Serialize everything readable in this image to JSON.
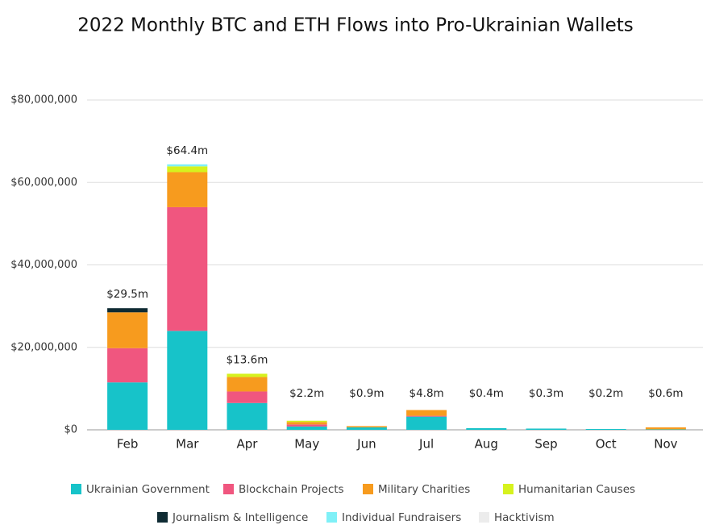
{
  "chart_data": {
    "type": "stacked-bar",
    "title": "2022 Monthly BTC and ETH Flows into Pro-Ukrainian Wallets",
    "categories": [
      "Feb",
      "Mar",
      "Apr",
      "May",
      "Jun",
      "Jul",
      "Aug",
      "Sep",
      "Oct",
      "Nov"
    ],
    "series": [
      {
        "name": "Ukrainian Government",
        "color": "#17c3c9",
        "values": [
          11500000,
          24000000,
          6500000,
          800000,
          600000,
          3200000,
          400000,
          300000,
          200000,
          100000
        ]
      },
      {
        "name": "Blockchain Projects",
        "color": "#f0567f",
        "values": [
          8300000,
          30000000,
          2800000,
          500000,
          0,
          200000,
          0,
          0,
          0,
          0
        ]
      },
      {
        "name": "Military Charities",
        "color": "#f79b1e",
        "values": [
          8700000,
          8500000,
          3500000,
          600000,
          300000,
          1400000,
          0,
          0,
          0,
          500000
        ]
      },
      {
        "name": "Humanitarian Causes",
        "color": "#d6f21e",
        "values": [
          0,
          1400000,
          800000,
          300000,
          0,
          0,
          0,
          0,
          0,
          0
        ]
      },
      {
        "name": "Journalism & Intelligence",
        "color": "#0f2b33",
        "values": [
          1000000,
          0,
          0,
          0,
          0,
          0,
          0,
          0,
          0,
          0
        ]
      },
      {
        "name": "Individual Fundraisers",
        "color": "#7ff0f7",
        "values": [
          0,
          500000,
          0,
          0,
          0,
          0,
          0,
          0,
          0,
          0
        ]
      },
      {
        "name": "Hacktivism",
        "color": "#ececec",
        "values": [
          0,
          0,
          0,
          0,
          0,
          0,
          0,
          0,
          0,
          0
        ]
      }
    ],
    "totals": {
      "values": [
        29500000,
        64400000,
        13600000,
        2200000,
        900000,
        4800000,
        400000,
        300000,
        200000,
        600000
      ],
      "value_labels": [
        "$29.5m",
        "$64.4m",
        "$13.6m",
        "$2.2m",
        "$0.9m",
        "$4.8m",
        "$0.4m",
        "$0.3m",
        "$0.2m",
        "$0.6m"
      ]
    },
    "ylim": [
      0,
      80000000
    ],
    "yticks": [
      {
        "value": 0,
        "label": "$0"
      },
      {
        "value": 20000000,
        "label": "$20,000,000"
      },
      {
        "value": 40000000,
        "label": "$40,000,000"
      },
      {
        "value": 60000000,
        "label": "$60,000,000"
      },
      {
        "value": 80000000,
        "label": "$80,000,000"
      }
    ],
    "grid": true
  }
}
